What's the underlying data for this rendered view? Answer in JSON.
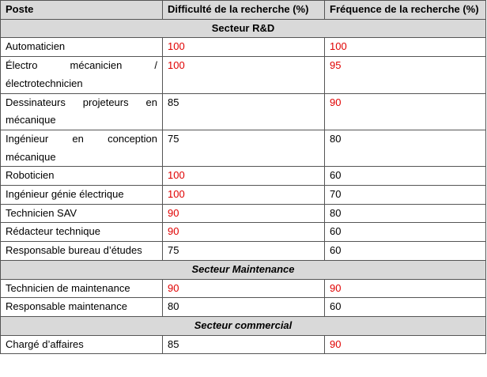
{
  "table": {
    "headers": [
      "Poste",
      "Difficulté de la recherche (%)",
      "Fréquence de la recherche (%)"
    ],
    "sections": [
      {
        "title": "Secteur R&D",
        "italic": false,
        "rows": [
          {
            "poste": "Automaticien",
            "difficulte": {
              "value": 100,
              "color": "#e00000"
            },
            "frequence": {
              "value": 100,
              "color": "#e00000"
            }
          },
          {
            "poste": "Électro mécanicien /électrotechnicien",
            "difficulte": {
              "value": 100,
              "color": "#e00000"
            },
            "frequence": {
              "value": 95,
              "color": "#e00000"
            }
          },
          {
            "poste": "Dessinateurs projeteurs en mécanique",
            "difficulte": {
              "value": 85,
              "color": "#000000"
            },
            "frequence": {
              "value": 90,
              "color": "#e00000"
            }
          },
          {
            "poste": "Ingénieur en conception mécanique",
            "difficulte": {
              "value": 75,
              "color": "#000000"
            },
            "frequence": {
              "value": 80,
              "color": "#000000"
            }
          },
          {
            "poste": "Roboticien",
            "difficulte": {
              "value": 100,
              "color": "#e00000"
            },
            "frequence": {
              "value": 60,
              "color": "#000000"
            }
          },
          {
            "poste": "Ingénieur génie électrique",
            "difficulte": {
              "value": 100,
              "color": "#e00000"
            },
            "frequence": {
              "value": 70,
              "color": "#000000"
            }
          },
          {
            "poste": "Technicien SAV",
            "difficulte": {
              "value": 90,
              "color": "#e00000"
            },
            "frequence": {
              "value": 80,
              "color": "#000000"
            }
          },
          {
            "poste": "Rédacteur technique",
            "difficulte": {
              "value": 90,
              "color": "#e00000"
            },
            "frequence": {
              "value": 60,
              "color": "#000000"
            }
          },
          {
            "poste": "Responsable bureau d’études",
            "difficulte": {
              "value": 75,
              "color": "#000000"
            },
            "frequence": {
              "value": 60,
              "color": "#000000"
            }
          }
        ]
      },
      {
        "title": "Secteur Maintenance",
        "italic": true,
        "rows": [
          {
            "poste": "Technicien de maintenance",
            "difficulte": {
              "value": 90,
              "color": "#e00000"
            },
            "frequence": {
              "value": 90,
              "color": "#e00000"
            }
          },
          {
            "poste": "Responsable maintenance",
            "difficulte": {
              "value": 80,
              "color": "#000000"
            },
            "frequence": {
              "value": 60,
              "color": "#000000"
            }
          }
        ]
      },
      {
        "title": "Secteur commercial",
        "italic": true,
        "rows": [
          {
            "poste": "Chargé d’affaires",
            "difficulte": {
              "value": 85,
              "color": "#000000"
            },
            "frequence": {
              "value": 90,
              "color": "#e00000"
            }
          }
        ]
      }
    ]
  }
}
